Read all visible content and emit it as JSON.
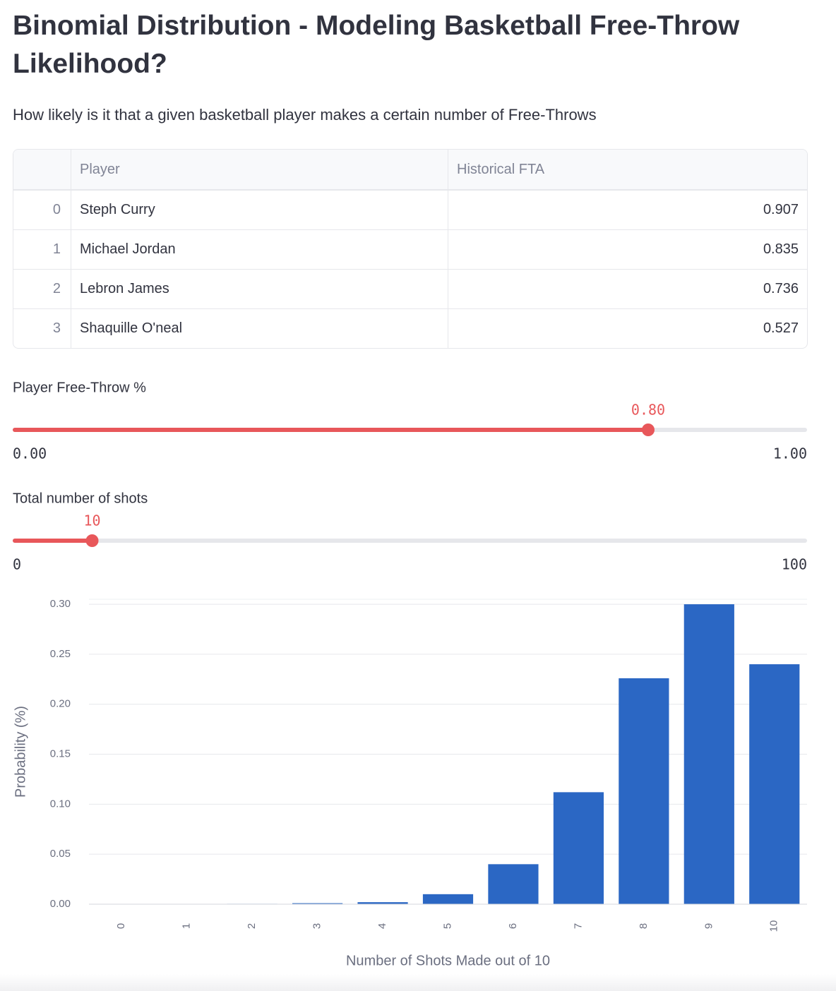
{
  "header": {
    "title": "Binomial Distribution - Modeling Basketball Free-Throw Likelihood?",
    "subtitle": "How likely is it that a given basketball player makes a certain number of Free-Throws"
  },
  "table": {
    "columns": [
      "Player",
      "Historical FTA"
    ],
    "rows": [
      [
        "0",
        "Steph Curry",
        "0.907"
      ],
      [
        "1",
        "Michael Jordan",
        "0.835"
      ],
      [
        "2",
        "Lebron James",
        "0.736"
      ],
      [
        "3",
        "Shaquille O'neal",
        "0.527"
      ]
    ]
  },
  "sliders": [
    {
      "label": "Player Free-Throw %",
      "value": "0.80",
      "min": "0.00",
      "max": "1.00"
    },
    {
      "label": "Total number of shots",
      "value": "10",
      "min": "0",
      "max": "100"
    }
  ],
  "chart_data": {
    "type": "bar",
    "x_label": "Number of Shots Made out of 10",
    "y_label": "Probability (%)",
    "categories": [
      "0",
      "1",
      "2",
      "3",
      "4",
      "5",
      "6",
      "7",
      "8",
      "9",
      "10"
    ],
    "values": [
      1e-05,
      0.0001,
      0.0004,
      0.001,
      0.002,
      0.01,
      0.04,
      0.112,
      0.226,
      0.3,
      0.24
    ],
    "color": "#2b67c4",
    "ylim": [
      0,
      0.305
    ],
    "yticks": [
      {
        "value": 0,
        "label": "0.00"
      },
      0.05,
      {
        "value": 0.1,
        "label": "0.10"
      },
      0.15,
      {
        "value": 0.2,
        "label": "0.20"
      },
      0.25,
      {
        "value": 0.3,
        "label": "0.30"
      }
    ],
    "grid": true
  }
}
